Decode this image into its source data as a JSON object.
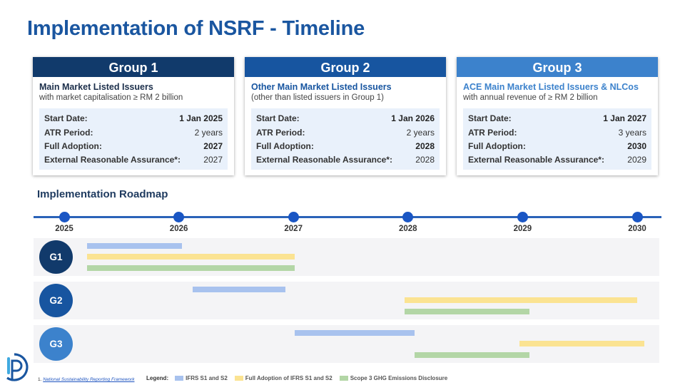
{
  "title": "Implementation of NSRF - Timeline",
  "groups": [
    {
      "name": "Group 1",
      "header_color": "#113a6b",
      "title": "Main Market Listed Issuers",
      "title_color": "#1b2e4a",
      "subtitle": "with market capitalisation ≥ RM 2 billion",
      "start_label": "Start Date:",
      "start_value": "1 Jan 2025",
      "atr_label": "ATR Period:",
      "atr_value": "2 years",
      "full_label": "Full Adoption:",
      "full_value": "2027",
      "era_label": "External Reasonable Assurance*:",
      "era_value": "2027"
    },
    {
      "name": "Group 2",
      "header_color": "#1755a0",
      "title": "Other Main Market Listed Issuers",
      "title_color": "#1755a0",
      "subtitle": "(other than listed issuers in Group 1)",
      "start_label": "Start Date:",
      "start_value": "1 Jan 2026",
      "atr_label": "ATR Period:",
      "atr_value": "2 years",
      "full_label": "Full Adoption:",
      "full_value": "2028",
      "era_label": "External Reasonable Assurance*:",
      "era_value": "2028"
    },
    {
      "name": "Group 3",
      "header_color": "#3c82cc",
      "title": "ACE Main Market Listed Issuers & NLCos",
      "title_color": "#3c82cc",
      "subtitle": "with annual revenue of ≥ RM 2 billion",
      "start_label": "Start Date:",
      "start_value": "1 Jan 2027",
      "atr_label": "ATR Period:",
      "atr_value": "3 years",
      "full_label": "Full Adoption:",
      "full_value": "2030",
      "era_label": "External Reasonable Assurance*:",
      "era_value": "2029"
    }
  ],
  "roadmap": {
    "title": "Implementation Roadmap",
    "years": [
      "2025",
      "2026",
      "2027",
      "2028",
      "2029",
      "2030"
    ],
    "lanes": [
      {
        "label": "G1",
        "color": "#113a6b",
        "bars": [
          {
            "type": "ifrs",
            "start": 2025.2,
            "end": 2026.03
          },
          {
            "type": "full",
            "start": 2025.2,
            "end": 2027.01
          },
          {
            "type": "ghg",
            "start": 2025.2,
            "end": 2027.01
          }
        ]
      },
      {
        "label": "G2",
        "color": "#1755a0",
        "bars": [
          {
            "type": "ifrs",
            "start": 2026.12,
            "end": 2026.93
          },
          {
            "type": "full",
            "start": 2027.97,
            "end": 2030.0
          },
          {
            "type": "ghg",
            "start": 2027.97,
            "end": 2029.06
          }
        ]
      },
      {
        "label": "G3",
        "color": "#3c82cc",
        "bars": [
          {
            "type": "ifrs",
            "start": 2027.01,
            "end": 2028.06
          },
          {
            "type": "full",
            "start": 2028.97,
            "end": 2030.06
          },
          {
            "type": "ghg",
            "start": 2028.06,
            "end": 2029.06
          }
        ]
      }
    ]
  },
  "footnote": {
    "number": "1.",
    "link_text": "National Sustainability Reporting Framework"
  },
  "legend": {
    "title": "Legend:",
    "items": [
      {
        "type": "ifrs",
        "label": "IFRS S1 and S2",
        "color": "#a8c2ee"
      },
      {
        "type": "full",
        "label": "Full Adoption of IFRS S1 and S2",
        "color": "#fbe392"
      },
      {
        "type": "ghg",
        "label": "Scope 3 GHG Emissions Disclosure",
        "color": "#b3d6a6"
      }
    ]
  }
}
